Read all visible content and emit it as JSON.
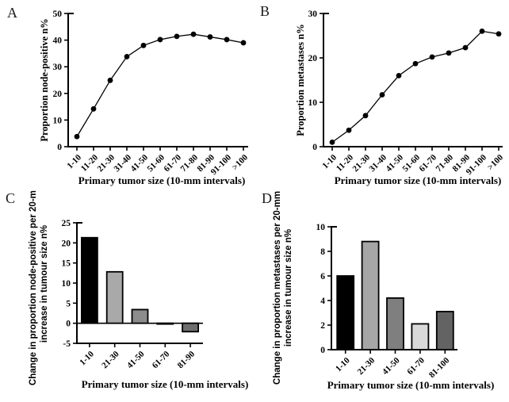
{
  "figure": {
    "background": "#ffffff",
    "axis_color": "#000000",
    "point_color": "#000000"
  },
  "chart_data": [
    {
      "id": "A",
      "panel_label": "A",
      "type": "line",
      "categories": [
        "1-10",
        "11-20",
        "21-30",
        "31-40",
        "41-50",
        "51-60",
        "61-70",
        "71-80",
        "81-90",
        "91-100",
        ">100"
      ],
      "values": [
        3.8,
        14.2,
        24.9,
        33.8,
        38.0,
        40.2,
        41.4,
        42.2,
        41.2,
        40.2,
        39.0
      ],
      "ylabel": "Proportion node-positive  n%",
      "xlabel": "Primary tumor size (10-mm intervals)",
      "ylim": [
        0,
        50
      ],
      "yticks": [
        0,
        10,
        20,
        30,
        40,
        50
      ],
      "grid": false,
      "legend": "none"
    },
    {
      "id": "B",
      "panel_label": "B",
      "type": "line",
      "categories": [
        "1-10",
        "11-20",
        "21-30",
        "31-40",
        "41-50",
        "51-60",
        "61-70",
        "71-80",
        "81-90",
        "91-100",
        ">100"
      ],
      "values": [
        1.0,
        3.7,
        7.0,
        11.7,
        16.0,
        18.7,
        20.2,
        21.1,
        22.3,
        26.0,
        25.4
      ],
      "ylabel": "Proportion metastases n%",
      "xlabel": "Primary tumor size (10-mm intervals)",
      "ylim": [
        0,
        30
      ],
      "yticks": [
        0,
        10,
        20,
        30
      ],
      "grid": false,
      "legend": "none"
    },
    {
      "id": "C",
      "panel_label": "C",
      "type": "bar",
      "categories": [
        "1-10",
        "21-30",
        "41-50",
        "61-70",
        "81-90"
      ],
      "values": [
        21.3,
        12.8,
        3.4,
        -0.2,
        -2.1
      ],
      "bar_colors": [
        "#000000",
        "#a9a9a9",
        "#8c8c8c",
        "#8c8c8c",
        "#6e6e6e"
      ],
      "ylabel_line1": "Change in proportion node-positive per 20-mm",
      "ylabel_line2": "increase in tumour size  n%",
      "xlabel": "Primary tumor size (10-mm intervals)",
      "ylim": [
        -5,
        25
      ],
      "yticks": [
        -5,
        0,
        5,
        10,
        15,
        20,
        25
      ],
      "grid": false,
      "legend": "none"
    },
    {
      "id": "D",
      "panel_label": "D",
      "type": "bar",
      "categories": [
        "1-10",
        "21-30",
        "41-50",
        "61-70",
        "81-100"
      ],
      "values": [
        6.0,
        8.8,
        4.2,
        2.1,
        3.1
      ],
      "bar_colors": [
        "#000000",
        "#a6a6a6",
        "#7f7f7f",
        "#d9d9d9",
        "#636363"
      ],
      "ylabel_line1": "Change in proportion metastases per 20-mm",
      "ylabel_line2": "increase in tumour size  n%",
      "xlabel": "Primary tumor size (10-mm intervals)",
      "ylim": [
        0,
        10
      ],
      "yticks": [
        0,
        2,
        4,
        6,
        8,
        10
      ],
      "grid": false,
      "legend": "none"
    }
  ]
}
